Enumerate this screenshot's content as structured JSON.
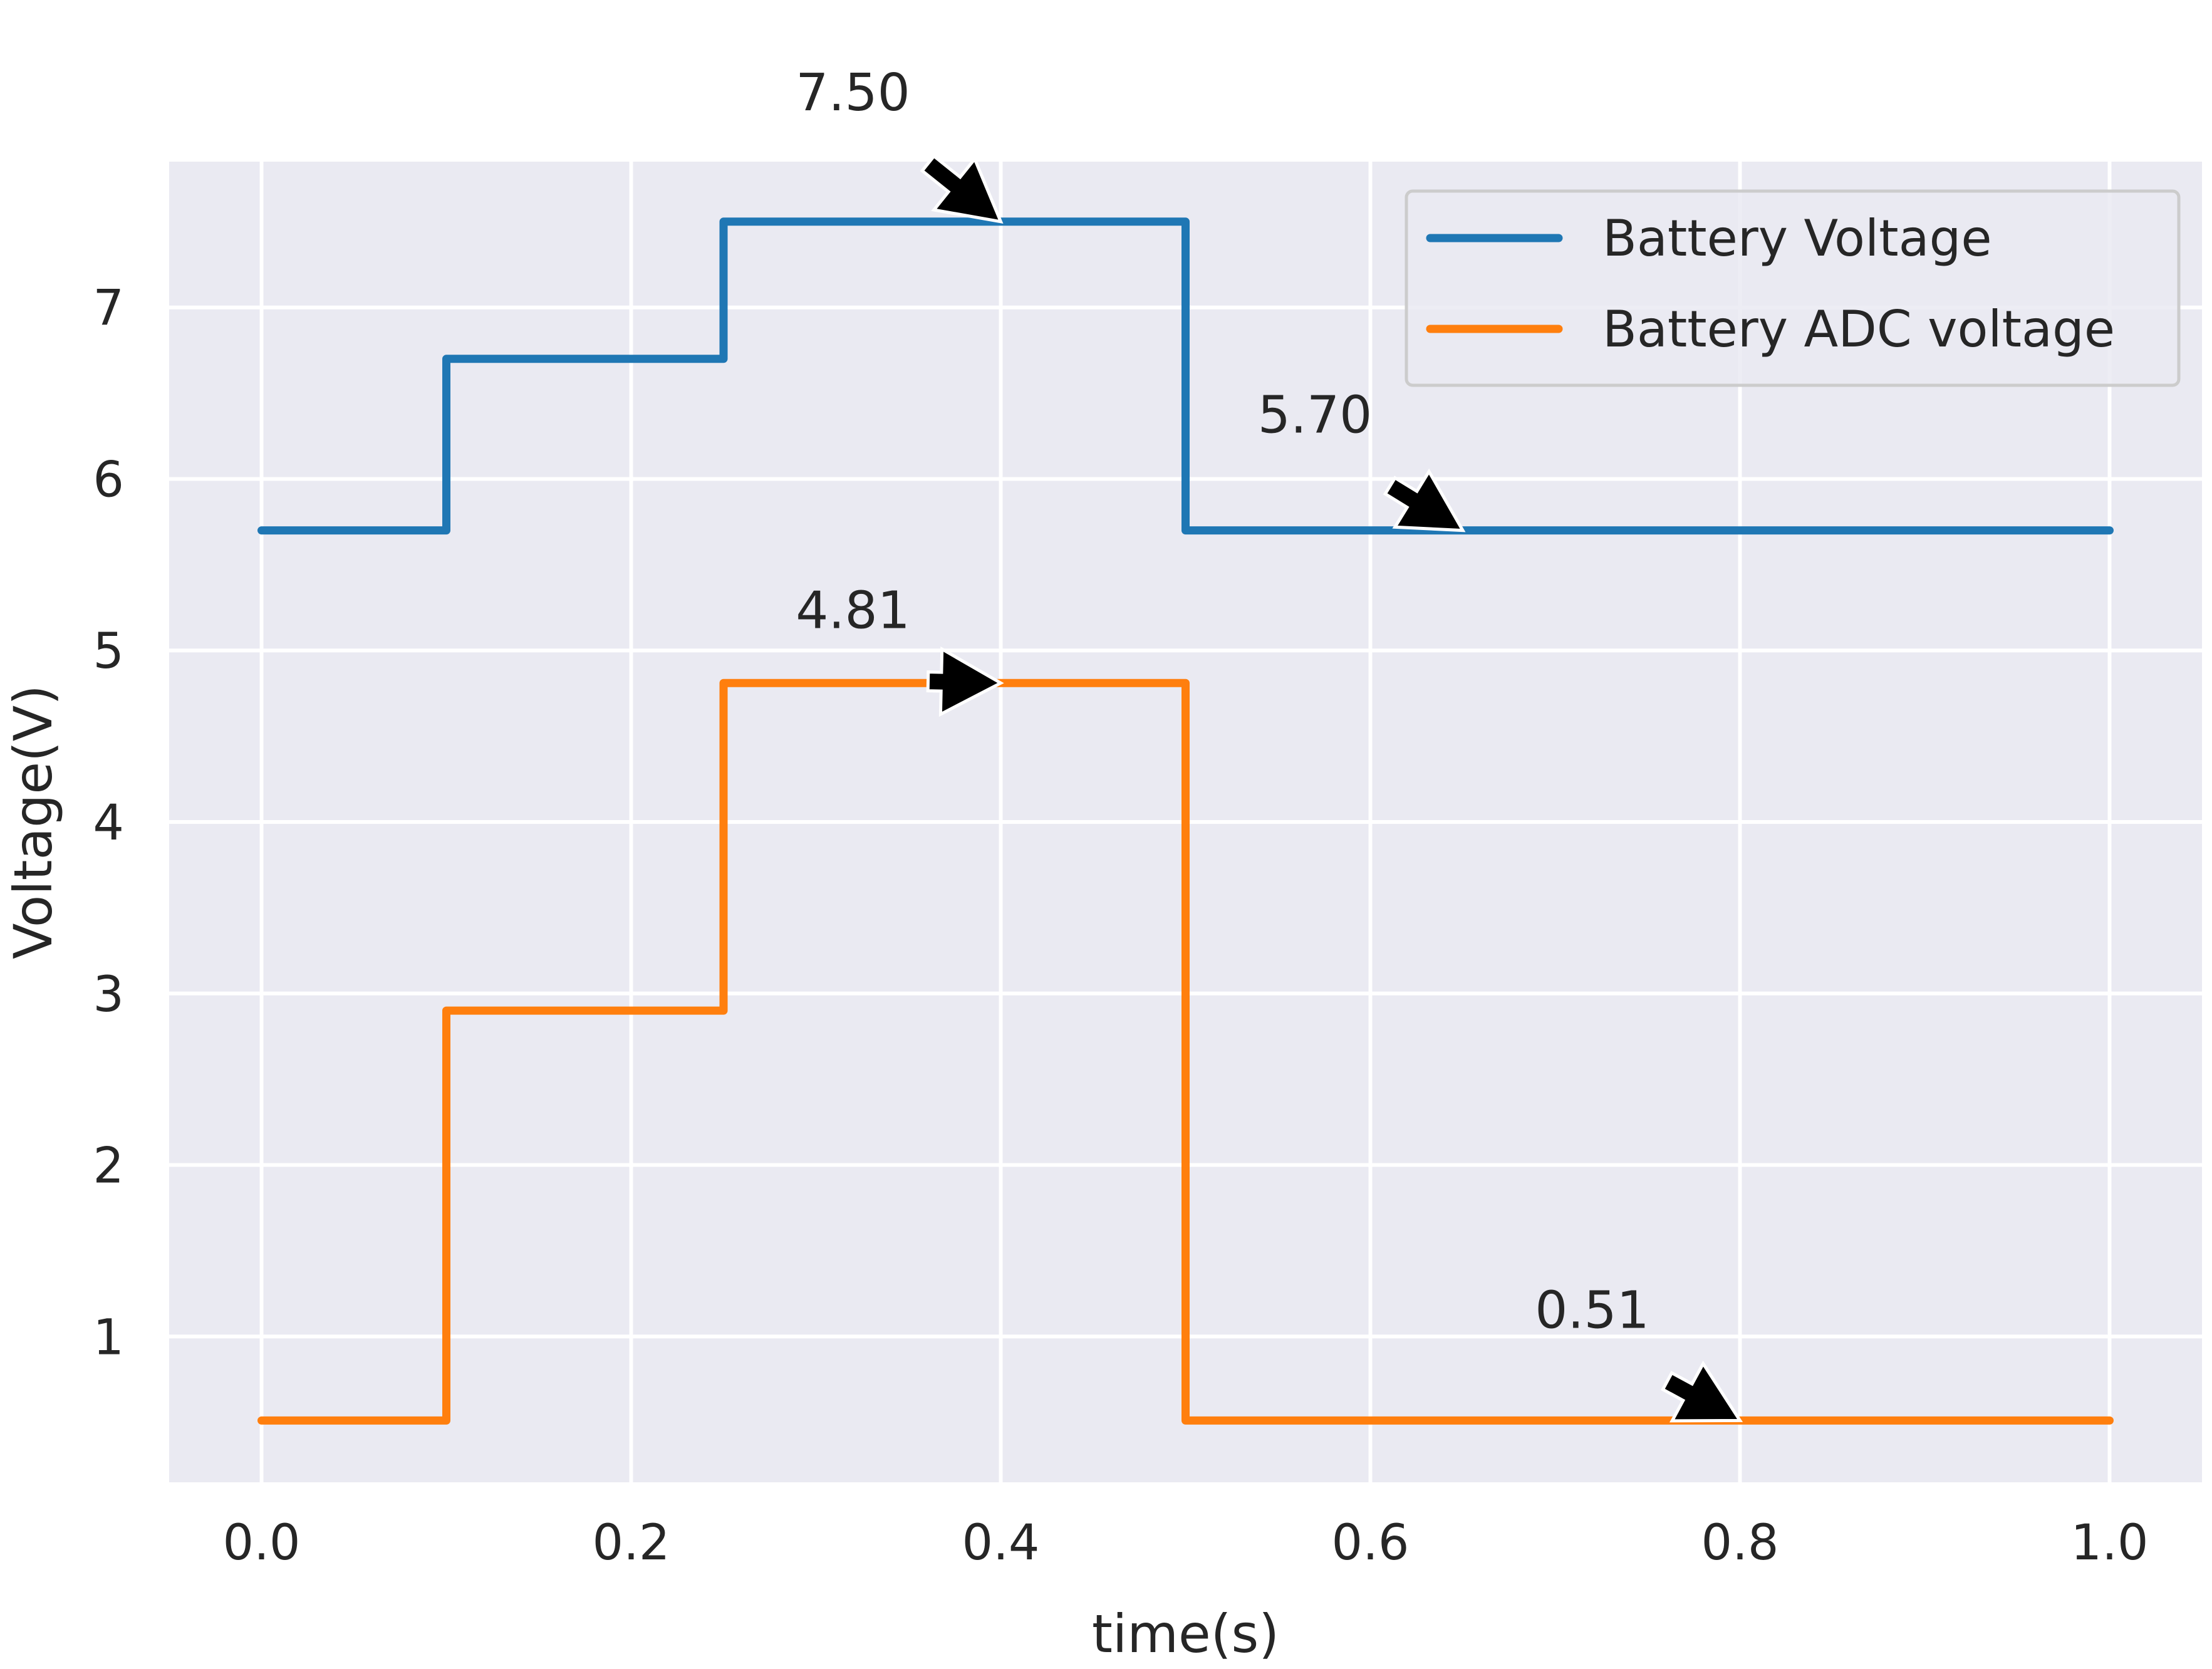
{
  "chart_data": {
    "type": "line",
    "title": "",
    "xlabel": "time(s)",
    "ylabel": "Voltage(V)",
    "xlim": [
      -0.05,
      1.05
    ],
    "ylim": [
      0.15,
      7.85
    ],
    "x_ticks": [
      0.0,
      0.2,
      0.4,
      0.6,
      0.8,
      1.0
    ],
    "x_tick_labels": [
      "0.0",
      "0.2",
      "0.4",
      "0.6",
      "0.8",
      "1.0"
    ],
    "y_ticks": [
      1,
      2,
      3,
      4,
      5,
      6,
      7
    ],
    "y_tick_labels": [
      "1",
      "2",
      "3",
      "4",
      "5",
      "6",
      "7"
    ],
    "grid": true,
    "legend_position": "top-right",
    "series": [
      {
        "name": "Battery Voltage",
        "color": "#1f77b4",
        "step": true,
        "x": [
          0.0,
          0.1,
          0.1,
          0.25,
          0.25,
          0.5,
          0.5,
          1.0
        ],
        "y": [
          5.7,
          5.7,
          6.7,
          6.7,
          7.5,
          7.5,
          5.7,
          5.7
        ]
      },
      {
        "name": "Battery ADC voltage",
        "color": "#ff7f0e",
        "step": true,
        "x": [
          0.0,
          0.1,
          0.1,
          0.25,
          0.25,
          0.5,
          0.5,
          1.0
        ],
        "y": [
          0.51,
          0.51,
          2.9,
          2.9,
          4.81,
          4.81,
          0.51,
          0.51
        ]
      }
    ],
    "annotations": [
      {
        "text": "7.50",
        "x": 0.4,
        "y": 7.5,
        "text_x": 0.32,
        "text_y": 8.15
      },
      {
        "text": "5.70",
        "x": 0.65,
        "y": 5.7,
        "text_x": 0.57,
        "text_y": 6.27
      },
      {
        "text": "4.81",
        "x": 0.4,
        "y": 4.81,
        "text_x": 0.32,
        "text_y": 5.13
      },
      {
        "text": "0.51",
        "x": 0.8,
        "y": 0.51,
        "text_x": 0.72,
        "text_y": 1.05
      }
    ],
    "background_color": "#eaeaf2",
    "grid_color": "#ffffff"
  }
}
